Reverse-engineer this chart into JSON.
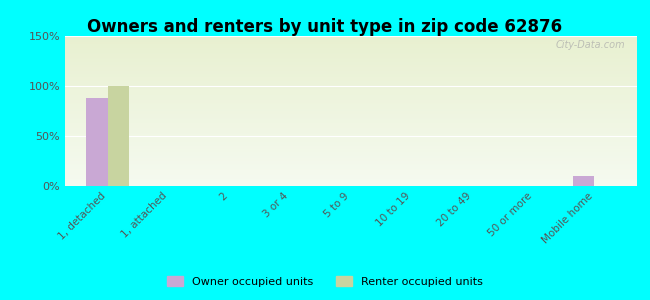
{
  "title": "Owners and renters by unit type in zip code 62876",
  "categories": [
    "1, detached",
    "1, attached",
    "2",
    "3 or 4",
    "5 to 9",
    "10 to 19",
    "20 to 49",
    "50 or more",
    "Mobile home"
  ],
  "owner_values": [
    88,
    0,
    0,
    0,
    0,
    0,
    0,
    0,
    10
  ],
  "renter_values": [
    100,
    0,
    0,
    0,
    0,
    0,
    0,
    0,
    0
  ],
  "owner_color": "#c9a8d4",
  "renter_color": "#c8d4a0",
  "ylim": [
    0,
    150
  ],
  "yticks": [
    0,
    50,
    100,
    150
  ],
  "ytick_labels": [
    "0%",
    "50%",
    "100%",
    "150%"
  ],
  "background_color": "#00ffff",
  "plot_bg_top": "#e8f0d0",
  "plot_bg_bottom": "#f5faf0",
  "legend_owner": "Owner occupied units",
  "legend_renter": "Renter occupied units",
  "watermark": "City-Data.com",
  "bar_width": 0.35
}
